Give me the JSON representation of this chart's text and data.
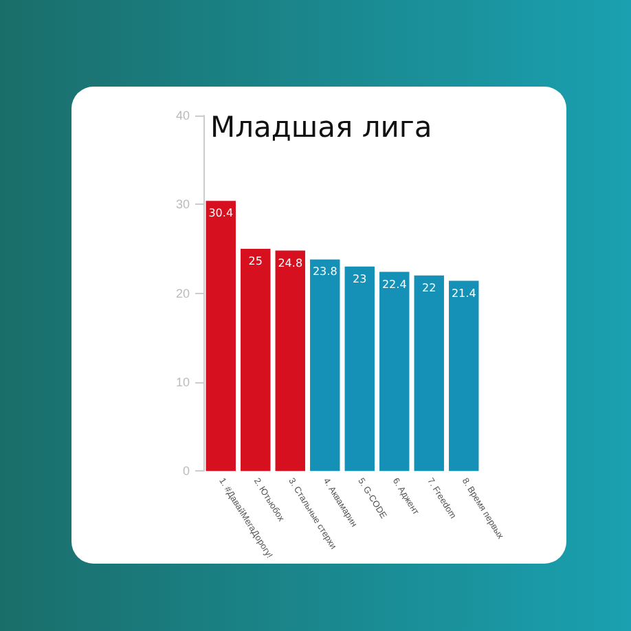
{
  "chart_data": {
    "type": "bar",
    "title": "Младшая лига",
    "categories": [
      "1. #ДавайМегаДорогу!",
      "2. Ютьюбох",
      "3. Стальные стерхи",
      "4. Аквамарин",
      "5. G-CODE",
      "6. Аджент",
      "7. Freedom",
      "8. Время первых"
    ],
    "values": [
      30.4,
      25,
      24.8,
      23.8,
      23,
      22.4,
      22,
      21.4
    ],
    "colors": [
      "#d7101f",
      "#d7101f",
      "#d7101f",
      "#1591b7",
      "#1591b7",
      "#1591b7",
      "#1591b7",
      "#1591b7"
    ],
    "ylim": [
      0,
      40
    ],
    "yticks": [
      0,
      10,
      20,
      30,
      40
    ],
    "grid": false,
    "data_labels": true
  }
}
